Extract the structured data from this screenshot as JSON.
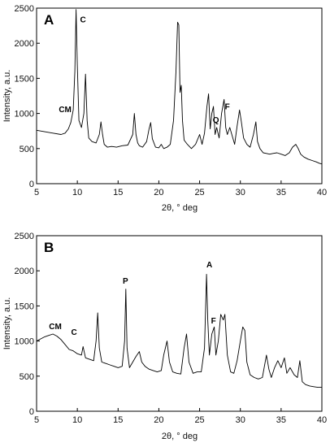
{
  "chart_data": [
    {
      "type": "line",
      "panel": "A",
      "xlabel": "2θ, ° deg",
      "ylabel": "Intensity, a.u.",
      "xlim": [
        5,
        40
      ],
      "ylim": [
        0,
        2500
      ],
      "xticks": [
        5,
        10,
        15,
        20,
        25,
        30,
        35,
        40
      ],
      "yticks": [
        0,
        500,
        1000,
        1500,
        2000,
        2500
      ],
      "series": [
        {
          "x": [
            5,
            6,
            7,
            8,
            8.5,
            8.9,
            9.2,
            9.5,
            9.7,
            9.85,
            10.0,
            10.2,
            10.5,
            10.8,
            11.0,
            11.2,
            11.4,
            11.8,
            12.3,
            12.7,
            12.9,
            13.1,
            13.3,
            13.7,
            14.2,
            14.8,
            15.5,
            16.2,
            16.8,
            17.0,
            17.2,
            17.4,
            17.6,
            18.0,
            18.5,
            18.8,
            19.0,
            19.2,
            19.6,
            20.0,
            20.3,
            20.6,
            21.0,
            21.4,
            21.8,
            22.1,
            22.3,
            22.45,
            22.6,
            22.75,
            22.9,
            23.1,
            23.5,
            24.0,
            24.5,
            25.0,
            25.3,
            25.6,
            25.9,
            26.1,
            26.3,
            26.5,
            26.7,
            26.9,
            27.1,
            27.4,
            27.7,
            28.0,
            28.2,
            28.4,
            28.7,
            29.0,
            29.3,
            29.6,
            29.9,
            30.1,
            30.4,
            30.8,
            31.2,
            31.6,
            31.9,
            32.1,
            32.4,
            32.8,
            33.2,
            33.6,
            34.0,
            34.5,
            35.0,
            35.5,
            36.0,
            36.4,
            36.8,
            37.1,
            37.4,
            37.8,
            38.3,
            38.8,
            39.3,
            39.7,
            40.0
          ],
          "y": [
            760,
            740,
            720,
            700,
            720,
            780,
            870,
            1050,
            1600,
            2480,
            1700,
            900,
            800,
            1000,
            1560,
            900,
            650,
            600,
            580,
            700,
            880,
            700,
            560,
            520,
            530,
            520,
            540,
            550,
            700,
            1000,
            700,
            580,
            540,
            520,
            600,
            780,
            870,
            640,
            520,
            510,
            560,
            500,
            520,
            560,
            900,
            1600,
            2300,
            2260,
            1300,
            1400,
            900,
            620,
            560,
            500,
            560,
            700,
            560,
            720,
            1100,
            1280,
            780,
            1000,
            1100,
            700,
            800,
            650,
            1000,
            1200,
            800,
            700,
            800,
            680,
            560,
            820,
            1050,
            900,
            650,
            560,
            520,
            700,
            880,
            600,
            500,
            440,
            430,
            420,
            430,
            440,
            420,
            400,
            440,
            520,
            560,
            500,
            420,
            380,
            350,
            330,
            310,
            290,
            280
          ]
        }
      ],
      "annotations": [
        "CM",
        "C",
        "Q",
        "F"
      ]
    },
    {
      "type": "line",
      "panel": "B",
      "xlabel": "2θ, ° deg",
      "ylabel": "Intensity, a.u.",
      "xlim": [
        5,
        40
      ],
      "ylim": [
        0,
        2500
      ],
      "xticks": [
        5,
        10,
        15,
        20,
        25,
        30,
        35,
        40
      ],
      "yticks": [
        0,
        500,
        1000,
        1500,
        2000,
        2500
      ],
      "series": [
        {
          "x": [
            5,
            5.5,
            6,
            6.5,
            7,
            7.5,
            8,
            8.5,
            9,
            9.5,
            10,
            10.5,
            10.7,
            11,
            11.5,
            12,
            12.3,
            12.5,
            12.7,
            13,
            13.5,
            14,
            14.5,
            15,
            15.5,
            15.8,
            15.95,
            16.1,
            16.4,
            16.8,
            17.2,
            17.6,
            17.9,
            18.3,
            18.8,
            19.3,
            19.8,
            20.3,
            20.6,
            21.0,
            21.3,
            21.7,
            22.2,
            22.7,
            23.1,
            23.4,
            23.7,
            24.2,
            24.7,
            25.2,
            25.6,
            25.85,
            26.0,
            26.2,
            26.5,
            26.8,
            27.0,
            27.3,
            27.6,
            27.9,
            28.1,
            28.4,
            28.8,
            29.2,
            29.6,
            30.0,
            30.3,
            30.55,
            30.8,
            31.2,
            31.7,
            32.2,
            32.7,
            33.2,
            33.5,
            33.8,
            34.2,
            34.6,
            35.0,
            35.4,
            35.7,
            36.1,
            36.6,
            37.0,
            37.3,
            37.6,
            38.0,
            38.5,
            39.0,
            39.5,
            40.0
          ],
          "y": [
            1000,
            1030,
            1060,
            1080,
            1100,
            1070,
            1020,
            950,
            880,
            860,
            820,
            800,
            920,
            760,
            740,
            720,
            1000,
            1400,
            900,
            700,
            680,
            660,
            640,
            620,
            640,
            1000,
            1740,
            900,
            620,
            700,
            780,
            850,
            700,
            640,
            600,
            580,
            560,
            580,
            800,
            1000,
            700,
            560,
            540,
            530,
            900,
            1100,
            700,
            540,
            560,
            560,
            900,
            1950,
            1300,
            800,
            1100,
            1200,
            800,
            1000,
            1380,
            1300,
            1380,
            800,
            560,
            540,
            720,
            1000,
            1200,
            1150,
            700,
            520,
            480,
            460,
            480,
            800,
            600,
            480,
            620,
            720,
            620,
            760,
            540,
            620,
            520,
            480,
            720,
            420,
            380,
            360,
            350,
            340,
            340
          ]
        }
      ],
      "annotations": [
        "CM",
        "C",
        "P",
        "A",
        "F"
      ]
    }
  ],
  "panels": [
    {
      "letter": "A",
      "xlabel": "2θ, ° deg",
      "ylabel": "Intensity, a.u.",
      "labels": [
        {
          "text": "CM",
          "x": 8.5,
          "y": 1020
        },
        {
          "text": "C",
          "x": 10.7,
          "y": 2300
        },
        {
          "text": "Q",
          "x": 27.0,
          "y": 870
        },
        {
          "text": "F",
          "x": 28.4,
          "y": 1060
        }
      ]
    },
    {
      "letter": "B",
      "xlabel": "2θ, ° deg",
      "ylabel": "Intensity, a.u.",
      "labels": [
        {
          "text": "CM",
          "x": 7.3,
          "y": 1170
        },
        {
          "text": "C",
          "x": 9.6,
          "y": 1090
        },
        {
          "text": "P",
          "x": 15.9,
          "y": 1820
        },
        {
          "text": "A",
          "x": 26.2,
          "y": 2050
        },
        {
          "text": "F",
          "x": 26.7,
          "y": 1250
        }
      ]
    }
  ]
}
